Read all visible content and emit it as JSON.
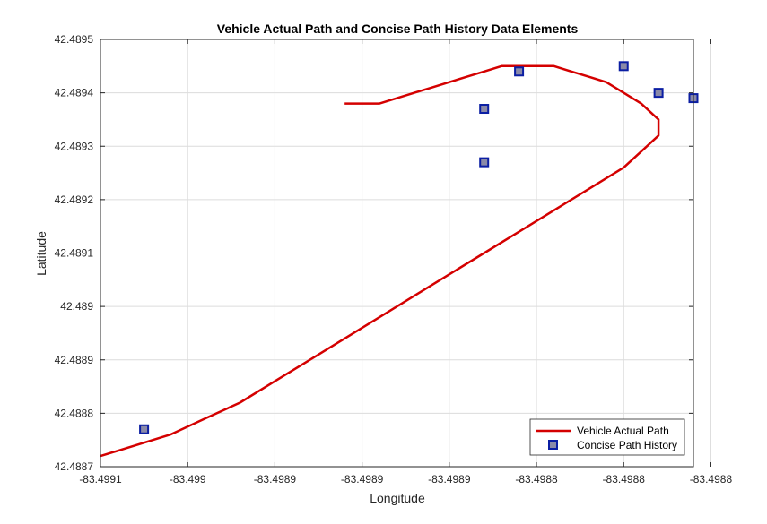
{
  "chart_data": {
    "type": "line",
    "title": "Vehicle Actual Path and Concise Path History Data Elements",
    "xlabel": "Longitude",
    "ylabel": "Latitude",
    "xlim": [
      -83.4991,
      -83.49876
    ],
    "ylim": [
      42.4887,
      42.4895
    ],
    "x_tick_values": [
      -83.4991,
      -83.49905,
      -83.499,
      -83.49895,
      -83.4989,
      -83.49885,
      -83.4988,
      -83.49875
    ],
    "x_tick_labels": [
      "-83.4991",
      "-83.499",
      "-83.4989",
      "-83.4989",
      "-83.4989",
      "-83.4988",
      "-83.4988",
      "-83.4988"
    ],
    "y_tick_values": [
      42.4887,
      42.4888,
      42.4889,
      42.489,
      42.4891,
      42.4892,
      42.4893,
      42.4894,
      42.4895
    ],
    "y_tick_labels": [
      "42.4887",
      "42.4888",
      "42.4889",
      "42.489",
      "42.4891",
      "42.4892",
      "42.4893",
      "42.4894",
      "42.4895"
    ],
    "grid": true,
    "legend_location": "bottom-right",
    "series": [
      {
        "name": "Vehicle Actual Path",
        "color": "#d40000",
        "marker": "none",
        "x": [
          -83.4991,
          -83.49908,
          -83.49906,
          -83.49904,
          -83.49902,
          -83.499,
          -83.49898,
          -83.49896,
          -83.49894,
          -83.49892,
          -83.4989,
          -83.49888,
          -83.49886,
          -83.49884,
          -83.49882,
          -83.4988,
          -83.49879,
          -83.49878,
          -83.49878,
          -83.49879,
          -83.4988,
          -83.49881,
          -83.49882,
          -83.49883,
          -83.49884,
          -83.49885,
          -83.49886,
          -83.49887,
          -83.49888,
          -83.49889,
          -83.4989,
          -83.49891,
          -83.49892,
          -83.49893,
          -83.49894,
          -83.49895,
          -83.49896
        ],
        "y": [
          42.48872,
          42.48874,
          42.48876,
          42.48879,
          42.48882,
          42.48886,
          42.4889,
          42.48894,
          42.48898,
          42.48902,
          42.48906,
          42.4891,
          42.48914,
          42.48918,
          42.48922,
          42.48926,
          42.48929,
          42.48932,
          42.48935,
          42.48938,
          42.4894,
          42.48942,
          42.48943,
          42.48944,
          42.48945,
          42.48945,
          42.48945,
          42.48945,
          42.48944,
          42.48943,
          42.48942,
          42.48941,
          42.4894,
          42.48939,
          42.48938,
          42.48938,
          42.48938
        ]
      },
      {
        "name": "Concise Path History",
        "color": "#0b1ea3",
        "marker_fill": "#8a8aa8",
        "marker": "square",
        "x": [
          -83.499075,
          -83.49888,
          -83.49888,
          -83.49886,
          -83.49878,
          -83.4988,
          -83.49876
        ],
        "y": [
          42.48877,
          42.48927,
          42.48937,
          42.48944,
          42.4894,
          42.48945,
          42.48939
        ]
      }
    ]
  }
}
